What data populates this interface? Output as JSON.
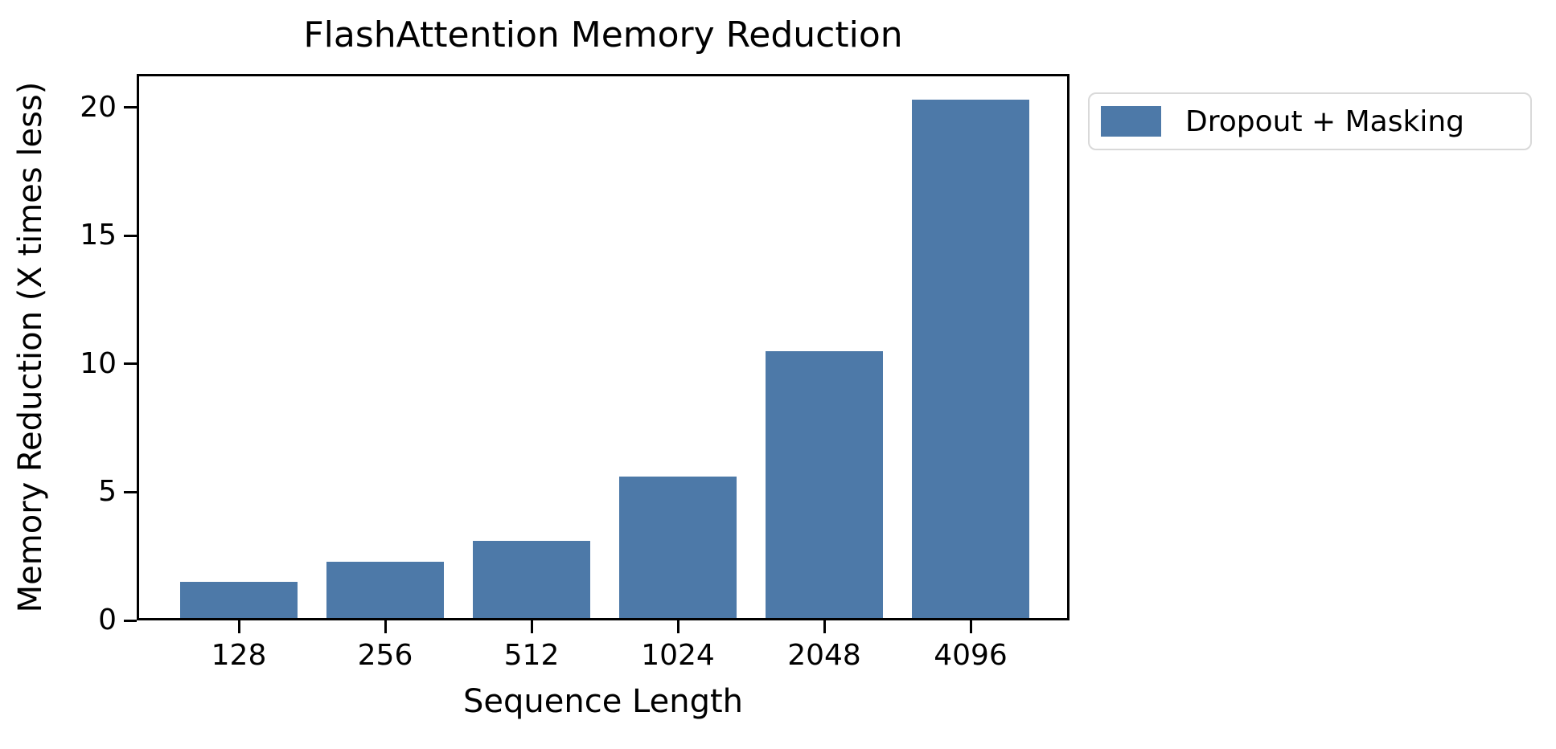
{
  "chart_data": {
    "type": "bar",
    "title": "FlashAttention Memory Reduction",
    "xlabel": "Sequence Length",
    "ylabel": "Memory Reduction (X times less)",
    "categories": [
      "128",
      "256",
      "512",
      "1024",
      "2048",
      "4096"
    ],
    "series": [
      {
        "name": "Dropout + Masking",
        "values": [
          1.5,
          2.3,
          3.1,
          5.6,
          10.5,
          20.3
        ]
      }
    ],
    "yticks": [
      0,
      5,
      10,
      15,
      20
    ],
    "ylim": [
      0,
      21.3
    ],
    "grid": false,
    "legend_position": "outside-upper-right",
    "bar_color": "#4d79a8",
    "axis_color": "#000000",
    "background_color": "#ffffff"
  }
}
